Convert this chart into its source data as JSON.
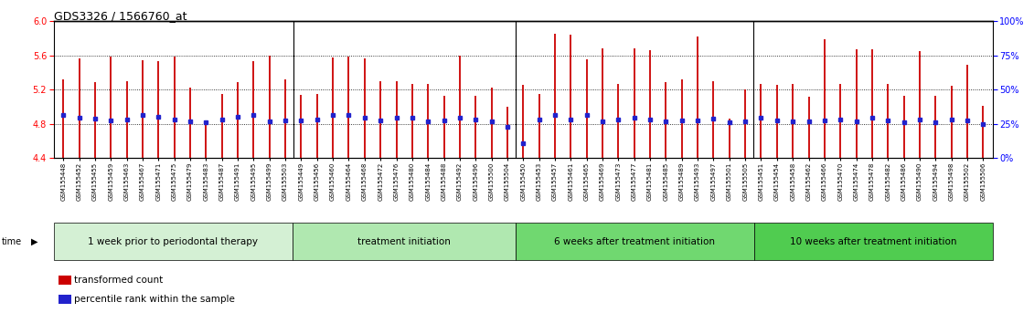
{
  "title": "GDS3326 / 1566760_at",
  "samples": [
    "GSM155448",
    "GSM155452",
    "GSM155455",
    "GSM155459",
    "GSM155463",
    "GSM155467",
    "GSM155471",
    "GSM155475",
    "GSM155479",
    "GSM155483",
    "GSM155487",
    "GSM155491",
    "GSM155495",
    "GSM155499",
    "GSM155503",
    "GSM155449",
    "GSM155456",
    "GSM155460",
    "GSM155464",
    "GSM155468",
    "GSM155472",
    "GSM155476",
    "GSM155480",
    "GSM155484",
    "GSM155488",
    "GSM155492",
    "GSM155496",
    "GSM155500",
    "GSM155504",
    "GSM155450",
    "GSM155453",
    "GSM155457",
    "GSM155461",
    "GSM155465",
    "GSM155469",
    "GSM155473",
    "GSM155477",
    "GSM155481",
    "GSM155485",
    "GSM155489",
    "GSM155493",
    "GSM155497",
    "GSM155501",
    "GSM155505",
    "GSM155451",
    "GSM155454",
    "GSM155458",
    "GSM155462",
    "GSM155466",
    "GSM155470",
    "GSM155474",
    "GSM155478",
    "GSM155482",
    "GSM155486",
    "GSM155490",
    "GSM155494",
    "GSM155498",
    "GSM155502",
    "GSM155506"
  ],
  "red_values": [
    5.32,
    5.56,
    5.29,
    5.59,
    5.3,
    5.54,
    5.53,
    5.59,
    5.22,
    4.82,
    5.15,
    5.29,
    5.53,
    5.6,
    5.32,
    5.14,
    5.15,
    5.57,
    5.59,
    5.56,
    5.3,
    5.3,
    5.27,
    5.27,
    5.13,
    5.6,
    5.13,
    5.22,
    5.0,
    5.26,
    5.15,
    5.85,
    5.84,
    5.55,
    5.68,
    5.27,
    5.68,
    5.66,
    5.29,
    5.32,
    5.82,
    5.3,
    4.86,
    5.2,
    5.27,
    5.26,
    5.27,
    5.12,
    5.79,
    5.27,
    5.67,
    5.67,
    5.27,
    5.13,
    5.65,
    5.13,
    5.24,
    5.49,
    5.01
  ],
  "blue_values": [
    4.9,
    4.87,
    4.86,
    4.84,
    4.85,
    4.9,
    4.88,
    4.85,
    4.83,
    4.82,
    4.85,
    4.88,
    4.9,
    4.83,
    4.84,
    4.84,
    4.85,
    4.9,
    4.91,
    4.87,
    4.84,
    4.87,
    4.87,
    4.83,
    4.84,
    4.87,
    4.85,
    4.83,
    4.77,
    4.57,
    4.85,
    4.9,
    4.85,
    4.9,
    4.83,
    4.85,
    4.87,
    4.85,
    4.83,
    4.84,
    4.84,
    4.86,
    4.82,
    4.83,
    4.87,
    4.84,
    4.83,
    4.83,
    4.84,
    4.85,
    4.83,
    4.87,
    4.84,
    4.82,
    4.85,
    4.82,
    4.85,
    4.84,
    4.8
  ],
  "groups": [
    {
      "label": "1 week prior to periodontal therapy",
      "start": 0,
      "end": 15,
      "color": "#d4f0d4"
    },
    {
      "label": "treatment initiation",
      "start": 15,
      "end": 29,
      "color": "#b0e8b0"
    },
    {
      "label": "6 weeks after treatment initiation",
      "start": 29,
      "end": 44,
      "color": "#70d870"
    },
    {
      "label": "10 weeks after treatment initiation",
      "start": 44,
      "end": 59,
      "color": "#50cc50"
    }
  ],
  "ylim_left": [
    4.4,
    6.0
  ],
  "yticks_left": [
    4.4,
    4.8,
    5.2,
    5.6,
    6.0
  ],
  "ylim_right": [
    0,
    100
  ],
  "yticks_right": [
    0,
    25,
    50,
    75,
    100
  ],
  "ytick_labels_right": [
    "0%",
    "25%",
    "50%",
    "75%",
    "100%"
  ],
  "bar_color": "#cc0000",
  "dot_color": "#2222cc",
  "tick_label_size": 5.0,
  "group_label_size": 7.5,
  "legend_red": "transformed count",
  "legend_blue": "percentile rank within the sample"
}
